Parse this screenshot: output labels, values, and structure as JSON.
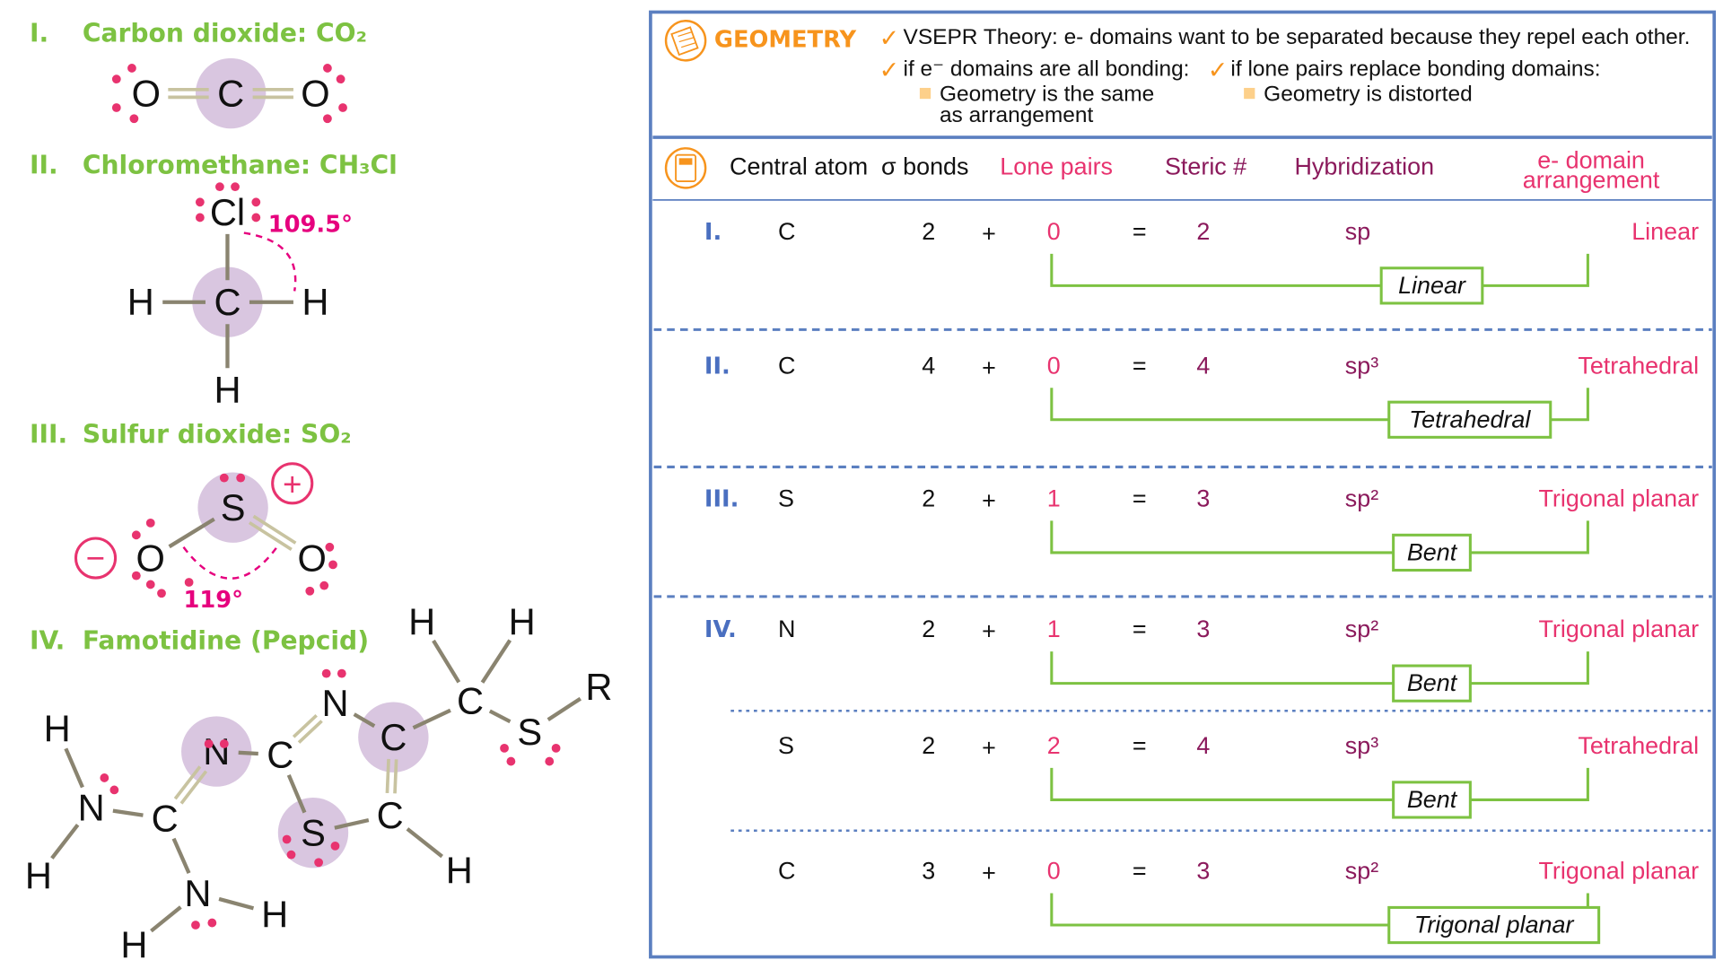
{
  "colors": {
    "green": "#7dc242",
    "pink": "#e8336f",
    "maroon": "#8b1a5c",
    "orange": "#f7941d",
    "blue": "#5b7fc0",
    "atom_highlight": "#d9c6e0",
    "bond": "#8a8470",
    "double_bond": "#c8c3a0"
  },
  "molecules": [
    {
      "numeral": "I.",
      "name": "Carbon dioxide:  CO₂",
      "atoms": [
        "O",
        "C",
        "O"
      ]
    },
    {
      "numeral": "II.",
      "name": "Chloromethane:  CH₃Cl",
      "atoms": [
        "Cl",
        "C",
        "H",
        "H",
        "H"
      ],
      "angle": "109.5°"
    },
    {
      "numeral": "III.",
      "name": "Sulfur dioxide:  SO₂",
      "atoms": [
        "S",
        "O",
        "O"
      ],
      "angle": "119°",
      "charges": [
        "+",
        "−"
      ]
    },
    {
      "numeral": "IV.",
      "name": "Famotidine (Pepcid)",
      "atoms": [
        "H",
        "N",
        "H",
        "C",
        "N",
        "H",
        "H",
        "N",
        "C",
        "N",
        "C",
        "C",
        "S",
        "H",
        "C",
        "H",
        "H",
        "S",
        "R"
      ]
    }
  ],
  "geometry": {
    "icon": "notepad-icon",
    "title": "GEOMETRY",
    "point1": "VSEPR Theory:  e- domains want to be separated because they repel each other.",
    "point2": "if e⁻ domains are all bonding:",
    "point2_sub1": "Geometry is the same",
    "point2_sub2": "as arrangement",
    "point3": "if lone pairs replace bonding domains:",
    "point3_sub": "Geometry is distorted"
  },
  "table": {
    "icon": "calculator-icon",
    "headers": {
      "central_atom": "Central atom",
      "sigma_bonds": "σ bonds",
      "lone_pairs": "Lone pairs",
      "steric": "Steric #",
      "hybridization": "Hybridization",
      "arrangement1": "e- domain",
      "arrangement2": "arrangement"
    },
    "rows": [
      {
        "numeral": "I.",
        "atom": "C",
        "sigma": "2",
        "plus": "+",
        "lone": "0",
        "eq": "=",
        "steric": "2",
        "hyb": "sp",
        "arrangement": "Linear",
        "geometry": "Linear"
      },
      {
        "numeral": "II.",
        "atom": "C",
        "sigma": "4",
        "plus": "+",
        "lone": "0",
        "eq": "=",
        "steric": "4",
        "hyb": "sp³",
        "arrangement": "Tetrahedral",
        "geometry": "Tetrahedral"
      },
      {
        "numeral": "III.",
        "atom": "S",
        "sigma": "2",
        "plus": "+",
        "lone": "1",
        "eq": "=",
        "steric": "3",
        "hyb": "sp²",
        "arrangement": "Trigonal planar",
        "geometry": "Bent"
      },
      {
        "numeral": "IV.",
        "atom": "N",
        "sigma": "2",
        "plus": "+",
        "lone": "1",
        "eq": "=",
        "steric": "3",
        "hyb": "sp²",
        "arrangement": "Trigonal planar",
        "geometry": "Bent"
      },
      {
        "numeral": "",
        "atom": "S",
        "sigma": "2",
        "plus": "+",
        "lone": "2",
        "eq": "=",
        "steric": "4",
        "hyb": "sp³",
        "arrangement": "Tetrahedral",
        "geometry": "Bent"
      },
      {
        "numeral": "",
        "atom": "C",
        "sigma": "3",
        "plus": "+",
        "lone": "0",
        "eq": "=",
        "steric": "3",
        "hyb": "sp²",
        "arrangement": "Trigonal planar",
        "geometry": "Trigonal planar"
      }
    ]
  }
}
